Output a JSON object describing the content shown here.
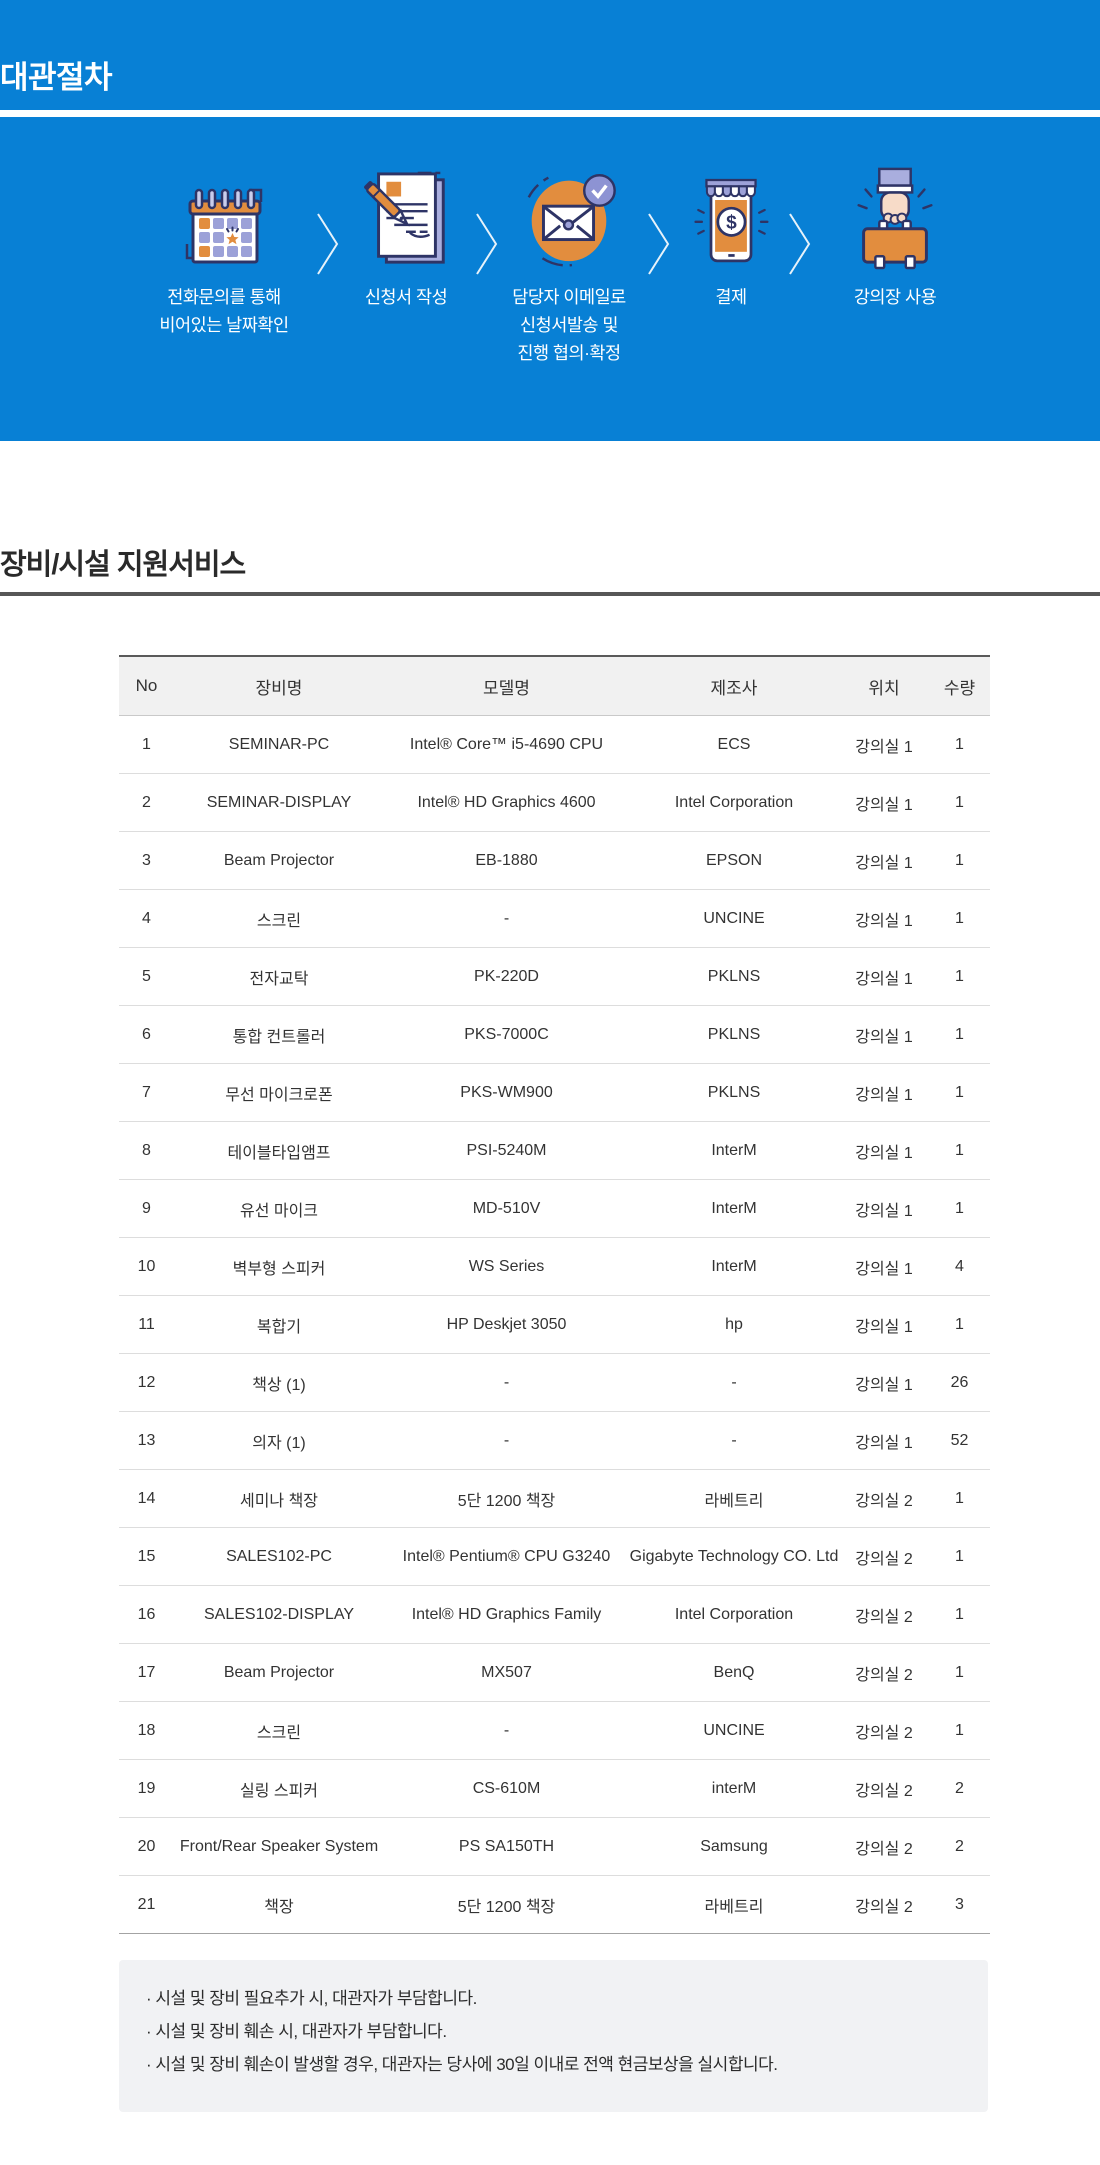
{
  "colors": {
    "primary_blue": "#0880d5",
    "accent_orange": "#e28d3e",
    "icon_navy": "#2e3466",
    "icon_lavender": "#9ca1d8"
  },
  "procedure": {
    "title": "대관절차",
    "steps": [
      {
        "icon": "calendar-icon",
        "lines": [
          "전화문의를 통해",
          "비어있는 날짜확인"
        ]
      },
      {
        "icon": "document-icon",
        "lines": [
          "신청서 작성"
        ]
      },
      {
        "icon": "email-check-icon",
        "lines": [
          "담당자 이메일로",
          "신청서발송 및",
          "진행 협의·확정"
        ]
      },
      {
        "icon": "payment-icon",
        "lines": [
          "결제"
        ]
      },
      {
        "icon": "briefcase-icon",
        "lines": [
          "강의장 사용"
        ]
      }
    ]
  },
  "equipment": {
    "heading": "장비/시설 지원서비스",
    "table": {
      "headers": [
        "No",
        "장비명",
        "모델명",
        "제조사",
        "위치",
        "수량"
      ],
      "rows": [
        [
          "1",
          "SEMINAR-PC",
          "Intel® Core™ i5-4690 CPU",
          "ECS",
          "강의실 1",
          "1"
        ],
        [
          "2",
          "SEMINAR-DISPLAY",
          "Intel® HD Graphics 4600",
          "Intel Corporation",
          "강의실 1",
          "1"
        ],
        [
          "3",
          "Beam Projector",
          "EB-1880",
          "EPSON",
          "강의실 1",
          "1"
        ],
        [
          "4",
          "스크린",
          "-",
          "UNCINE",
          "강의실 1",
          "1"
        ],
        [
          "5",
          "전자교탁",
          "PK-220D",
          "PKLNS",
          "강의실 1",
          "1"
        ],
        [
          "6",
          "통합 컨트롤러",
          "PKS-7000C",
          "PKLNS",
          "강의실 1",
          "1"
        ],
        [
          "7",
          "무선 마이크로폰",
          "PKS-WM900",
          "PKLNS",
          "강의실 1",
          "1"
        ],
        [
          "8",
          "테이블타입앰프",
          "PSI-5240M",
          "InterM",
          "강의실 1",
          "1"
        ],
        [
          "9",
          "유선 마이크",
          "MD-510V",
          "InterM",
          "강의실 1",
          "1"
        ],
        [
          "10",
          "벽부형 스피커",
          "WS Series",
          "InterM",
          "강의실 1",
          "4"
        ],
        [
          "11",
          "복합기",
          "HP Deskjet 3050",
          "hp",
          "강의실 1",
          "1"
        ],
        [
          "12",
          "책상 (1)",
          "-",
          "-",
          "강의실 1",
          "26"
        ],
        [
          "13",
          "의자 (1)",
          "-",
          "-",
          "강의실 1",
          "52"
        ],
        [
          "14",
          "세미나 책장",
          "5단 1200 책장",
          "라베트리",
          "강의실 2",
          "1"
        ],
        [
          "15",
          "SALES102-PC",
          "Intel® Pentium® CPU G3240",
          "Gigabyte Technology CO. Ltd",
          "강의실 2",
          "1"
        ],
        [
          "16",
          "SALES102-DISPLAY",
          "Intel® HD Graphics Family",
          "Intel Corporation",
          "강의실 2",
          "1"
        ],
        [
          "17",
          "Beam Projector",
          "MX507",
          "BenQ",
          "강의실 2",
          "1"
        ],
        [
          "18",
          "스크린",
          "-",
          "UNCINE",
          "강의실 2",
          "1"
        ],
        [
          "19",
          "실링 스피커",
          "CS-610M",
          "interM",
          "강의실 2",
          "2"
        ],
        [
          "20",
          "Front/Rear Speaker System",
          "PS SA150TH",
          "Samsung",
          "강의실 2",
          "2"
        ],
        [
          "21",
          "책장",
          "5단 1200 책장",
          "라베트리",
          "강의실 2",
          "3"
        ]
      ]
    },
    "notes": [
      "· 시설 및 장비 필요추가 시, 대관자가 부담합니다.",
      "· 시설 및 장비 훼손 시, 대관자가 부담합니다.",
      "· 시설 및 장비 훼손이 발생할 경우, 대관자는 당사에 30일 이내로 전액 현금보상을 실시합니다."
    ]
  }
}
